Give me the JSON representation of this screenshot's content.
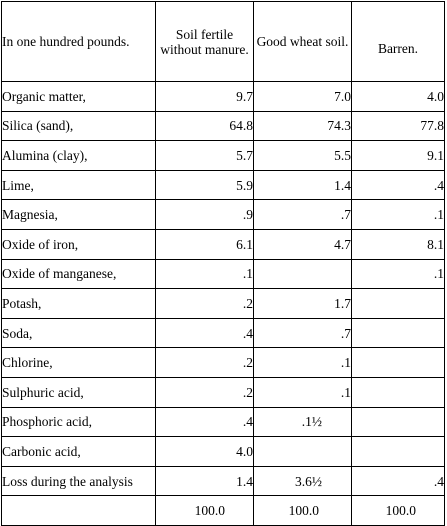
{
  "table": {
    "headers": [
      "In one hundred pounds.",
      "Soil fertile without manure.",
      "Good wheat soil.",
      "Barren."
    ],
    "rows": [
      {
        "name": "Organic matter,",
        "fertile": "9.7",
        "wheat": "7.0",
        "barren": "4.0"
      },
      {
        "name": "Silica (sand),",
        "fertile": "64.8",
        "wheat": "74.3",
        "barren": "77.8"
      },
      {
        "name": "Alumina (clay),",
        "fertile": "5.7",
        "wheat": "5.5",
        "barren": "9.1"
      },
      {
        "name": "Lime,",
        "fertile": "5.9",
        "wheat": "1.4",
        "barren": ".4"
      },
      {
        "name": "Magnesia,",
        "fertile": ".9",
        "wheat": ".7",
        "barren": ".1"
      },
      {
        "name": "Oxide of iron,",
        "fertile": "6.1",
        "wheat": "4.7",
        "barren": "8.1"
      },
      {
        "name": "Oxide of manganese,",
        "fertile": ".1",
        "wheat": "",
        "barren": ".1"
      },
      {
        "name": "Potash,",
        "fertile": ".2",
        "wheat": "1.7",
        "barren": ""
      },
      {
        "name": "Soda,",
        "fertile": ".4",
        "wheat": ".7",
        "barren": ""
      },
      {
        "name": "Chlorine,",
        "fertile": ".2",
        "wheat": ".1",
        "barren": ""
      },
      {
        "name": "Sulphuric acid,",
        "fertile": ".2",
        "wheat": ".1",
        "barren": ""
      },
      {
        "name": "Phosphoric acid,",
        "fertile": ".4",
        "wheat": ".1½",
        "barren": ""
      },
      {
        "name": "Carbonic acid,",
        "fertile": "4.0",
        "wheat": "",
        "barren": ""
      },
      {
        "name": "Loss during the analysis",
        "fertile": "1.4",
        "wheat": "3.6½",
        "barren": ".4"
      },
      {
        "name": "",
        "fertile": "100.0",
        "wheat": "100.0",
        "barren": "100.0"
      }
    ]
  }
}
